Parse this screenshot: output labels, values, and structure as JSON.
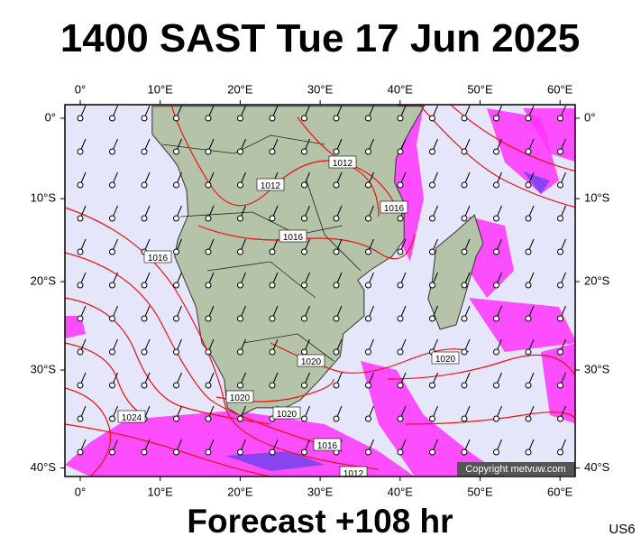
{
  "header": {
    "title": "1400 SAST Tue 17 Jun 2025"
  },
  "map": {
    "lon_ticks": [
      {
        "value": 0,
        "label": "0°"
      },
      {
        "value": 10,
        "label": "10°E"
      },
      {
        "value": 20,
        "label": "20°E"
      },
      {
        "value": 30,
        "label": "30°E"
      },
      {
        "value": 40,
        "label": "40°E"
      },
      {
        "value": 50,
        "label": "50°E"
      },
      {
        "value": 60,
        "label": "60°E"
      }
    ],
    "lat_ticks": [
      {
        "value": 0,
        "label": "0°"
      },
      {
        "value": -10,
        "label": "10°S"
      },
      {
        "value": -20,
        "label": "20°S"
      },
      {
        "value": -30,
        "label": "30°S"
      },
      {
        "value": -40,
        "label": "40°S"
      }
    ],
    "isobar_labels": [
      "1012",
      "1012",
      "1016",
      "1016",
      "1016",
      "1020",
      "1020",
      "1020",
      "1020",
      "1024",
      "1016",
      "1012"
    ],
    "copyright": "Copyright metvuw.com"
  },
  "footer": {
    "forecast": "Forecast +108 hr",
    "code": "US6"
  }
}
